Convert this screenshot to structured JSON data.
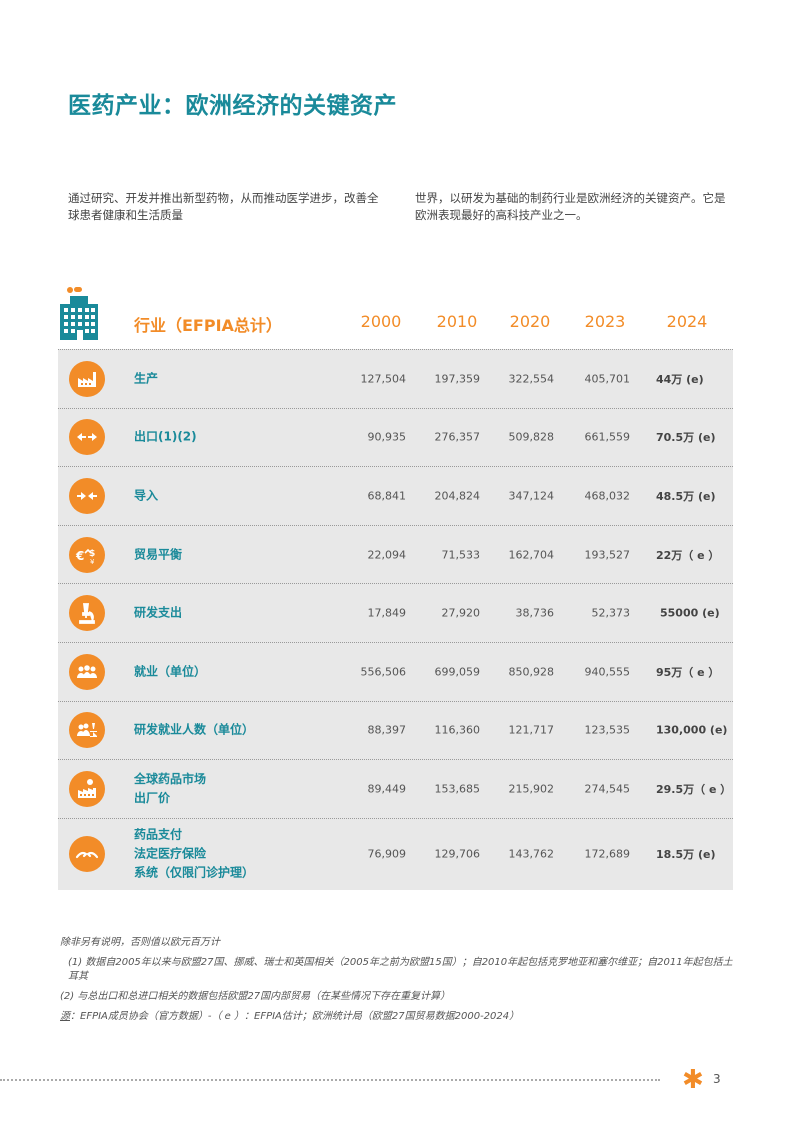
{
  "title": "医药产业：欧洲经济的关键资产",
  "intro": {
    "left": "通过研究、开发并推出新型药物，从而推动医学进步，改善全球患者健康和生活质量",
    "right": "世界，以研发为基础的制药行业是欧洲经济的关键资产。它是欧洲表现最好的高科技产业之一。"
  },
  "table": {
    "header_label": "行业（EFPIA总计）",
    "years": [
      "2000",
      "2010",
      "2020",
      "2023",
      "2024"
    ],
    "rows": [
      {
        "label": "生产",
        "icon": "factory-icon",
        "values": [
          "127,504",
          "197,359",
          "322,554",
          "405,701",
          "44万 (e)"
        ]
      },
      {
        "label": "出口(1)(2)",
        "icon": "export-arrows-icon",
        "values": [
          "90,935",
          "276,357",
          "509,828",
          "661,559",
          "70.5万 (e)"
        ]
      },
      {
        "label": "导入",
        "icon": "import-arrows-icon",
        "values": [
          "68,841",
          "204,824",
          "347,124",
          "468,032",
          "48.5万 (e)"
        ]
      },
      {
        "label": "贸易平衡",
        "icon": "currency-icon",
        "values": [
          "22,094",
          "71,533",
          "162,704",
          "193,527",
          "22万（ e ）"
        ]
      },
      {
        "label": "研发支出",
        "icon": "microscope-icon",
        "values": [
          "17,849",
          "27,920",
          "38,736",
          "52,373",
          "55000 (e)"
        ]
      },
      {
        "label": "就业（单位）",
        "icon": "people-icon",
        "values": [
          "556,506",
          "699,059",
          "850,928",
          "940,555",
          "95万（ e ）"
        ]
      },
      {
        "label": "研发就业人数（单位）",
        "icon": "researchers-icon",
        "values": [
          "88,397",
          "116,360",
          "121,717",
          "123,535",
          "130,000 (e)"
        ]
      },
      {
        "label": "全球药品市场\n出厂价",
        "icon": "market-icon",
        "values": [
          "89,449",
          "153,685",
          "215,902",
          "274,545",
          "29.5万（ e ）"
        ]
      },
      {
        "label": "药品支付\n法定医疗保险\n系统（仅限门诊护理）",
        "icon": "hands-icon",
        "values": [
          "76,909",
          "129,706",
          "143,762",
          "172,689",
          "18.5万 (e)"
        ]
      }
    ]
  },
  "notes": {
    "unit": "除非另有说明，否则值以欧元百万计",
    "note1": "(1) 数据自2005年以来与欧盟27国、挪威、瑞士和英国相关（2005年之前为欧盟15国）；自2010年起包括克罗地亚和塞尔维亚；自2011年起包括土耳其",
    "note2": "(2) 与总出口和总进口相关的数据包括欧盟27国内部贸易（在某些情况下存在重复计算）",
    "source_label": "源",
    "source_text": "：EFPIA成员协会（官方数据）-（ e ）：EFPIA估计；欧洲统计局（欧盟27国贸易数据2000-2024）"
  },
  "footer": {
    "page_number": "3"
  },
  "colors": {
    "teal": "#1a8a9a",
    "orange": "#f28c28",
    "table_bg": "#e8e8e8"
  }
}
